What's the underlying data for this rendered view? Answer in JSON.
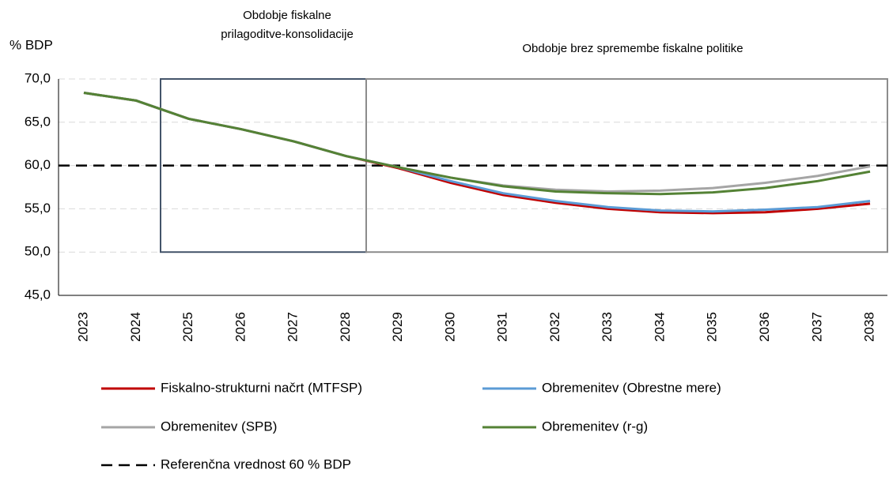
{
  "chart_data": {
    "type": "line",
    "y_label": "% BDP",
    "categories": [
      "2023",
      "2024",
      "2025",
      "2026",
      "2027",
      "2028",
      "2029",
      "2030",
      "2031",
      "2032",
      "2033",
      "2034",
      "2035",
      "2036",
      "2037",
      "2038"
    ],
    "series": [
      {
        "name": "Fiskalno-strukturni načrt (MTFSP)",
        "color": "#c00000",
        "values": [
          68.4,
          67.5,
          65.4,
          64.2,
          62.8,
          61.1,
          59.7,
          58.0,
          56.6,
          55.7,
          55.0,
          54.6,
          54.5,
          54.6,
          55.0,
          55.6
        ]
      },
      {
        "name": "Obremenitev (Obrestne mere)",
        "color": "#5b9bd5",
        "values": [
          68.4,
          67.5,
          65.4,
          64.2,
          62.8,
          61.1,
          59.8,
          58.2,
          56.8,
          55.9,
          55.2,
          54.8,
          54.7,
          54.9,
          55.2,
          55.9
        ]
      },
      {
        "name": "Obremenitev (SPB)",
        "color": "#a5a5a5",
        "values": [
          68.4,
          67.5,
          65.4,
          64.2,
          62.8,
          61.1,
          59.8,
          58.6,
          57.7,
          57.2,
          57.0,
          57.1,
          57.4,
          58.0,
          58.8,
          59.9
        ]
      },
      {
        "name": "Obremenitev (r-g)",
        "color": "#548235",
        "values": [
          68.4,
          67.5,
          65.4,
          64.2,
          62.8,
          61.1,
          59.8,
          58.6,
          57.6,
          57.0,
          56.8,
          56.7,
          56.9,
          57.4,
          58.2,
          59.3
        ]
      }
    ],
    "reference_line": {
      "name": "Referenčna vrednost 60 % BDP",
      "value": 60,
      "color": "#000000"
    },
    "periods": [
      {
        "label": [
          "Obdobje fiskalne",
          "prilagoditve-konsolidacije"
        ],
        "range": [
          50,
          70
        ],
        "color": "#44546a"
      },
      {
        "label": [
          "Obdobje brez spremembe fiskalne politike"
        ],
        "range": [
          50,
          70
        ],
        "color": "#8c8c8c"
      }
    ],
    "ylim": [
      45,
      70
    ],
    "yticks": [
      {
        "value": 45,
        "label": "45,0"
      },
      {
        "value": 50,
        "label": "50,0"
      },
      {
        "value": 55,
        "label": "55,0"
      },
      {
        "value": 60,
        "label": "60,0"
      },
      {
        "value": 65,
        "label": "65,0"
      },
      {
        "value": 70,
        "label": "70,0"
      }
    ],
    "grid": true
  }
}
